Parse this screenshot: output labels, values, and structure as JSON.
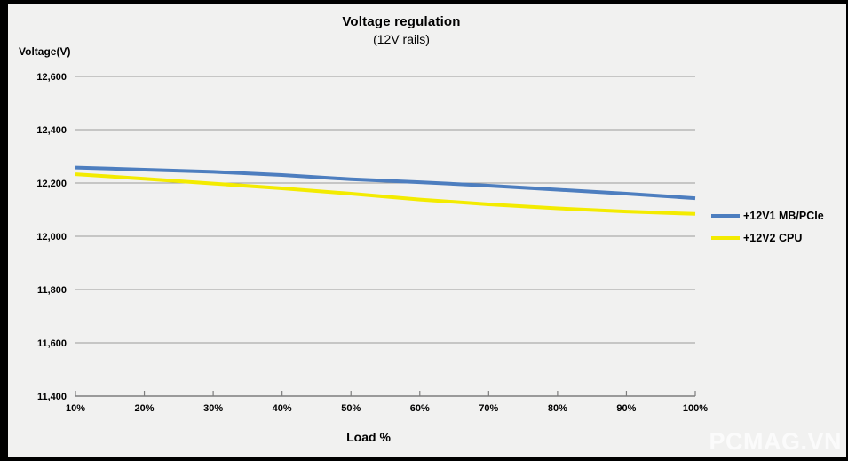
{
  "page": {
    "background": "#f1f1f0",
    "frame_border_color": "#000000"
  },
  "watermark": "PCMAG.VN",
  "chart_data": {
    "type": "line",
    "title": "Voltage regulation",
    "subtitle": "(12V rails)",
    "xlabel": "Load %",
    "ylabel": "Voltage(V)",
    "x": [
      10,
      20,
      30,
      40,
      50,
      60,
      70,
      80,
      90,
      100
    ],
    "x_tick_labels": [
      "10%",
      "20%",
      "30%",
      "40%",
      "50%",
      "60%",
      "70%",
      "80%",
      "90%",
      "100%"
    ],
    "ylim": [
      11400,
      12600
    ],
    "y_ticks": [
      {
        "value": 11400,
        "label": "11,400"
      },
      {
        "value": 11600,
        "label": "11,600"
      },
      {
        "value": 11800,
        "label": "11,800"
      },
      {
        "value": 12000,
        "label": "12,000"
      },
      {
        "value": 12200,
        "label": "12,200"
      },
      {
        "value": 12400,
        "label": "12,400"
      },
      {
        "value": 12600,
        "label": "12,600"
      }
    ],
    "grid": true,
    "legend_position": "right",
    "colors": {
      "grid": "#9a9a9a",
      "axis": "#7d7d7d",
      "text": "#000000"
    },
    "series": [
      {
        "name": "+12V1 MB/PCIe",
        "color": "#4d7ebf",
        "values": [
          12258,
          12250,
          12242,
          12230,
          12214,
          12203,
          12190,
          12175,
          12160,
          12143
        ]
      },
      {
        "name": "+12V2 CPU",
        "color": "#f3eb00",
        "values": [
          12233,
          12216,
          12198,
          12180,
          12160,
          12138,
          12120,
          12105,
          12093,
          12084
        ]
      }
    ]
  }
}
